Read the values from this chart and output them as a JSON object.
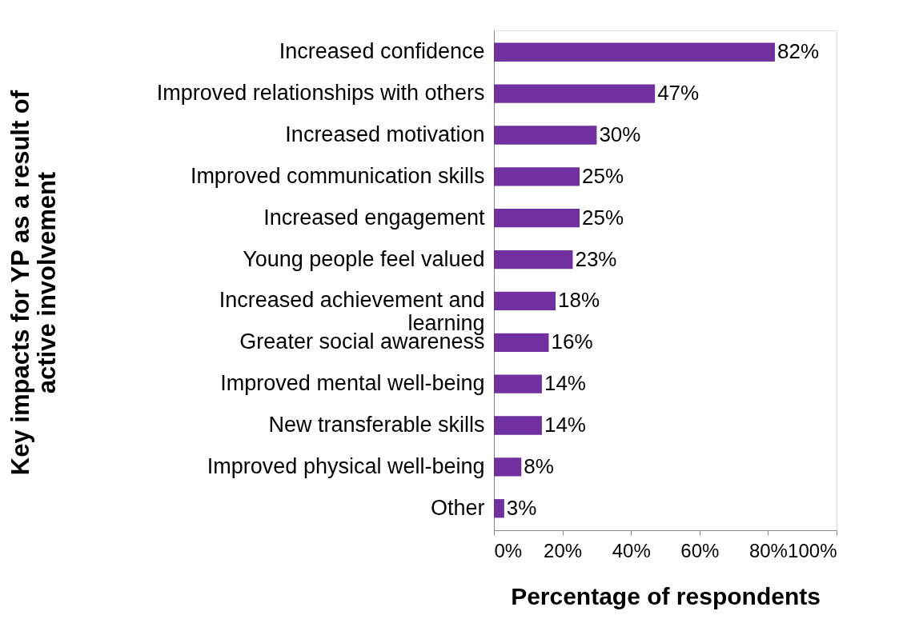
{
  "chart_data": {
    "type": "bar",
    "orientation": "horizontal",
    "xlabel": "Percentage of respondents",
    "ylabel": "Key impacts  for YP as a result of active involvement",
    "categories": [
      "Increased confidence",
      "Improved relationships with others",
      "Increased motivation",
      "Improved communication skills",
      "Increased engagement",
      "Young people feel valued",
      "Increased achievement and learning",
      "Greater social awareness",
      "Improved mental well-being",
      "New transferable skills",
      "Improved physical well-being",
      "Other"
    ],
    "values": [
      82,
      47,
      30,
      25,
      25,
      23,
      18,
      16,
      14,
      14,
      8,
      3
    ],
    "value_labels": [
      "82%",
      "47%",
      "30%",
      "25%",
      "25%",
      "23%",
      "18%",
      "16%",
      "14%",
      "14%",
      "8%",
      "3%"
    ],
    "color": "#7030a0",
    "xlim": [
      0,
      100
    ],
    "xticks": [
      {
        "value": 0,
        "label": "0%"
      },
      {
        "value": 20,
        "label": "20%"
      },
      {
        "value": 40,
        "label": "40%"
      },
      {
        "value": 60,
        "label": "60%"
      },
      {
        "value": 80,
        "label": "80%"
      },
      {
        "value": 100,
        "label": "100%"
      }
    ],
    "grid": false
  }
}
